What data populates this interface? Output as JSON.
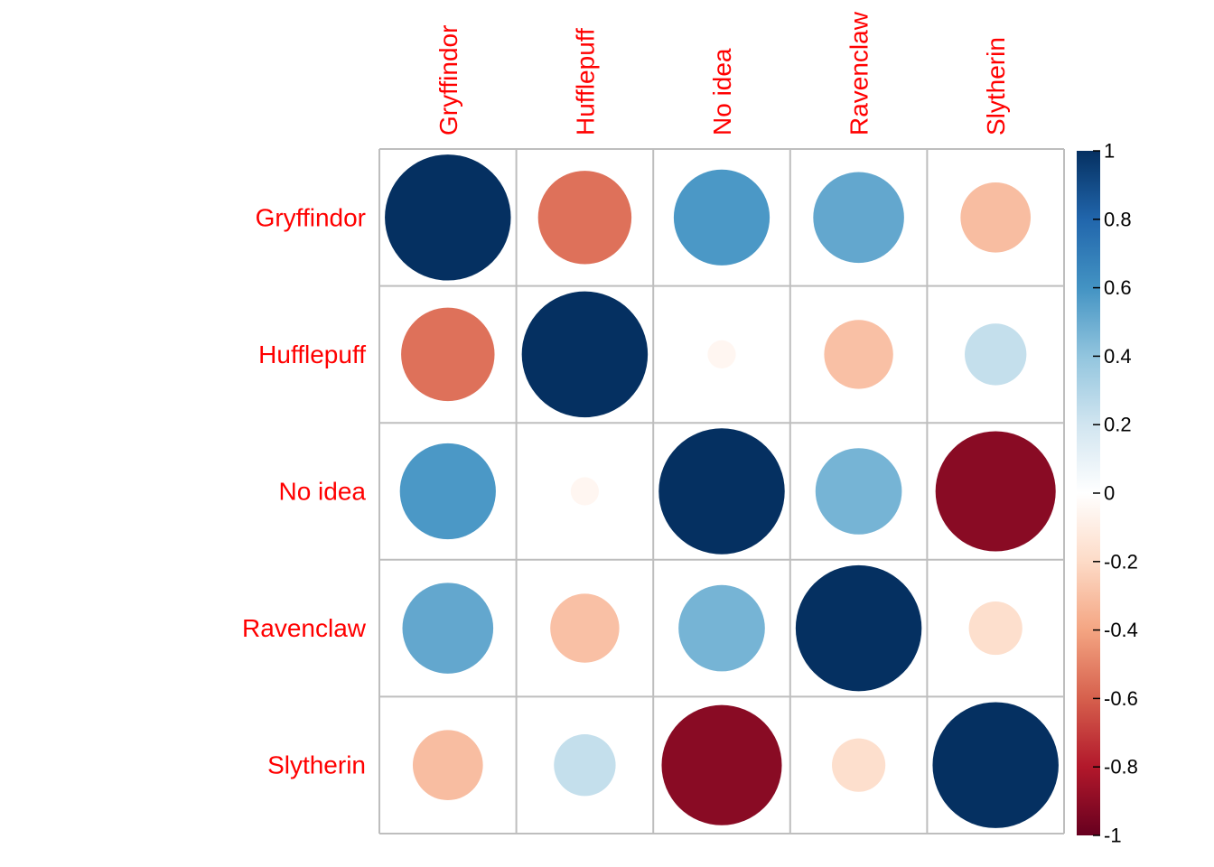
{
  "chart_data": {
    "type": "heatmap",
    "style": "correlation-circles",
    "row_labels": [
      "Gryffindor",
      "Hufflepuff",
      "No idea",
      "Ravenclaw",
      "Slytherin"
    ],
    "col_labels": [
      "Gryffindor",
      "Hufflepuff",
      "No idea",
      "Ravenclaw",
      "Slytherin"
    ],
    "matrix": [
      [
        1.0,
        -0.55,
        0.58,
        0.52,
        -0.31
      ],
      [
        -0.55,
        1.0,
        -0.05,
        -0.3,
        0.24
      ],
      [
        0.58,
        -0.05,
        1.0,
        0.47,
        -0.91
      ],
      [
        0.52,
        -0.3,
        0.47,
        1.0,
        -0.18
      ],
      [
        -0.31,
        0.24,
        -0.91,
        -0.18,
        1.0
      ]
    ],
    "colorbar": {
      "range": [
        -1,
        1
      ],
      "ticks": [
        1,
        0.8,
        0.6,
        0.4,
        0.2,
        0,
        -0.2,
        -0.4,
        -0.6,
        -0.8,
        -1
      ],
      "tick_labels": [
        "1",
        "0.8",
        "0.6",
        "0.4",
        "0.2",
        "0",
        "-0.2",
        "-0.4",
        "-0.6",
        "-0.8",
        "-1"
      ],
      "colors": [
        "#67001F",
        "#B2182B",
        "#D6604D",
        "#F4A582",
        "#FDDBC7",
        "#FFFFFF",
        "#D1E5F0",
        "#92C5DE",
        "#4393C3",
        "#2166AC",
        "#053061"
      ]
    },
    "label_color": "#FF0000",
    "grid": true
  }
}
